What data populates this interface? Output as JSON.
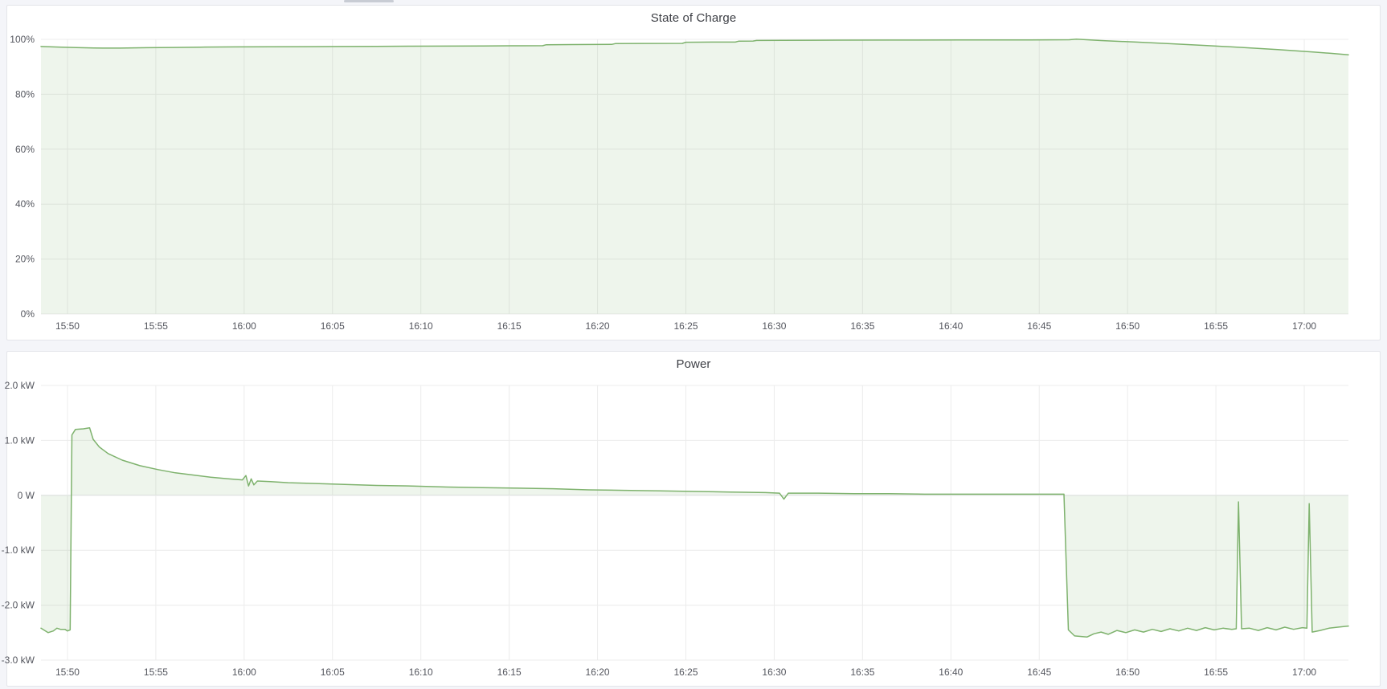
{
  "theme": {
    "page_bg": "#f4f5f9",
    "panel_bg": "#ffffff",
    "panel_border": "#e4e5ea",
    "grid_color": "#ececec",
    "zero_line_color": "#e0e0e3",
    "tick_text_color": "#54565e",
    "title_text_color": "#3d3f45",
    "series_green": "#7eb26d"
  },
  "chart_data": [
    {
      "type": "area",
      "title": "State of Charge",
      "xlabel": "",
      "ylabel": "",
      "grid": true,
      "legend": "none",
      "x_range_minutes": [
        0,
        74
      ],
      "x_ticks": {
        "times": [
          1.5,
          6.5,
          11.5,
          16.5,
          21.5,
          26.5,
          31.5,
          36.5,
          41.5,
          46.5,
          51.5,
          56.5,
          61.5,
          66.5,
          71.5
        ],
        "labels": [
          "15:50",
          "15:55",
          "16:00",
          "16:05",
          "16:10",
          "16:15",
          "16:20",
          "16:25",
          "16:30",
          "16:35",
          "16:40",
          "16:45",
          "16:50",
          "16:55",
          "17:00"
        ]
      },
      "ylim": [
        0,
        100
      ],
      "y_ticks": {
        "values": [
          100,
          80,
          60,
          40,
          20,
          0
        ],
        "labels": [
          "100%",
          "80%",
          "60%",
          "40%",
          "20%",
          "0%"
        ]
      },
      "fill_baseline": 0,
      "series": [
        {
          "name": "State of Charge",
          "unit": "%",
          "color": "#7eb26d",
          "fill_opacity": 0.13,
          "points": [
            [
              0,
              97.4
            ],
            [
              1,
              97.2
            ],
            [
              2,
              97.0
            ],
            [
              3,
              96.85
            ],
            [
              4.5,
              96.8
            ],
            [
              6,
              96.95
            ],
            [
              7.5,
              97.05
            ],
            [
              9,
              97.15
            ],
            [
              11,
              97.25
            ],
            [
              13,
              97.3
            ],
            [
              15,
              97.35
            ],
            [
              17,
              97.4
            ],
            [
              19,
              97.45
            ],
            [
              21,
              97.5
            ],
            [
              23,
              97.55
            ],
            [
              25,
              97.6
            ],
            [
              27,
              97.65
            ],
            [
              28.4,
              97.7
            ],
            [
              28.6,
              98.05
            ],
            [
              30,
              98.1
            ],
            [
              32.3,
              98.15
            ],
            [
              32.5,
              98.45
            ],
            [
              34,
              98.5
            ],
            [
              36.3,
              98.55
            ],
            [
              36.5,
              98.95
            ],
            [
              38,
              99.0
            ],
            [
              39.3,
              99.0
            ],
            [
              39.5,
              99.35
            ],
            [
              40.3,
              99.4
            ],
            [
              40.5,
              99.6
            ],
            [
              42,
              99.65
            ],
            [
              45,
              99.7
            ],
            [
              48,
              99.75
            ],
            [
              52,
              99.8
            ],
            [
              56,
              99.8
            ],
            [
              58.2,
              99.85
            ],
            [
              58.6,
              100.1
            ],
            [
              60,
              99.55
            ],
            [
              62,
              99.0
            ],
            [
              64,
              98.4
            ],
            [
              66,
              97.75
            ],
            [
              68,
              97.05
            ],
            [
              70,
              96.3
            ],
            [
              72,
              95.4
            ],
            [
              73,
              94.9
            ],
            [
              74,
              94.35
            ]
          ]
        }
      ]
    },
    {
      "type": "area",
      "title": "Power",
      "xlabel": "",
      "ylabel": "",
      "grid": true,
      "legend": "none",
      "x_range_minutes": [
        0,
        74
      ],
      "x_ticks": {
        "times": [
          1.5,
          6.5,
          11.5,
          16.5,
          21.5,
          26.5,
          31.5,
          36.5,
          41.5,
          46.5,
          51.5,
          56.5,
          61.5,
          66.5,
          71.5
        ],
        "labels": [
          "15:50",
          "15:55",
          "16:00",
          "16:05",
          "16:10",
          "16:15",
          "16:20",
          "16:25",
          "16:30",
          "16:35",
          "16:40",
          "16:45",
          "16:50",
          "16:55",
          "17:00"
        ]
      },
      "ylim": [
        -3,
        2
      ],
      "y_ticks": {
        "values": [
          2,
          1,
          0,
          -1,
          -2,
          -3
        ],
        "labels": [
          "2.0 kW",
          "1.0 kW",
          "0 W",
          "-1.0 kW",
          "-2.0 kW",
          "-3.0 kW"
        ]
      },
      "fill_baseline": 0,
      "series": [
        {
          "name": "Power",
          "unit": "kW",
          "color": "#7eb26d",
          "fill_opacity": 0.13,
          "points": [
            [
              0,
              -2.42
            ],
            [
              0.4,
              -2.5
            ],
            [
              0.7,
              -2.47
            ],
            [
              0.9,
              -2.42
            ],
            [
              1.1,
              -2.44
            ],
            [
              1.35,
              -2.44
            ],
            [
              1.5,
              -2.47
            ],
            [
              1.65,
              -2.45
            ],
            [
              1.75,
              1.1
            ],
            [
              1.95,
              1.2
            ],
            [
              2.4,
              1.21
            ],
            [
              2.75,
              1.23
            ],
            [
              2.95,
              1.02
            ],
            [
              3.3,
              0.88
            ],
            [
              3.8,
              0.76
            ],
            [
              4.6,
              0.64
            ],
            [
              5.6,
              0.54
            ],
            [
              6.6,
              0.47
            ],
            [
              7.6,
              0.41
            ],
            [
              8.6,
              0.37
            ],
            [
              9.6,
              0.33
            ],
            [
              10.6,
              0.3
            ],
            [
              11.4,
              0.28
            ],
            [
              11.6,
              0.36
            ],
            [
              11.75,
              0.17
            ],
            [
              11.9,
              0.3
            ],
            [
              12.05,
              0.19
            ],
            [
              12.25,
              0.26
            ],
            [
              13,
              0.25
            ],
            [
              14,
              0.23
            ],
            [
              15,
              0.22
            ],
            [
              17,
              0.2
            ],
            [
              19,
              0.18
            ],
            [
              21,
              0.17
            ],
            [
              23,
              0.15
            ],
            [
              25,
              0.14
            ],
            [
              27,
              0.13
            ],
            [
              29,
              0.12
            ],
            [
              31,
              0.1
            ],
            [
              33,
              0.09
            ],
            [
              35,
              0.08
            ],
            [
              37,
              0.07
            ],
            [
              39,
              0.06
            ],
            [
              41,
              0.05
            ],
            [
              41.8,
              0.04
            ],
            [
              42.05,
              -0.07
            ],
            [
              42.3,
              0.04
            ],
            [
              44,
              0.04
            ],
            [
              46,
              0.03
            ],
            [
              48,
              0.03
            ],
            [
              50,
              0.02
            ],
            [
              52,
              0.02
            ],
            [
              54,
              0.02
            ],
            [
              56,
              0.02
            ],
            [
              57.9,
              0.02
            ],
            [
              58.15,
              -2.45
            ],
            [
              58.5,
              -2.56
            ],
            [
              59.2,
              -2.58
            ],
            [
              59.6,
              -2.52
            ],
            [
              60,
              -2.49
            ],
            [
              60.4,
              -2.53
            ],
            [
              60.9,
              -2.46
            ],
            [
              61.4,
              -2.5
            ],
            [
              61.9,
              -2.45
            ],
            [
              62.4,
              -2.49
            ],
            [
              62.9,
              -2.44
            ],
            [
              63.4,
              -2.48
            ],
            [
              63.9,
              -2.43
            ],
            [
              64.4,
              -2.47
            ],
            [
              64.9,
              -2.42
            ],
            [
              65.4,
              -2.46
            ],
            [
              65.9,
              -2.41
            ],
            [
              66.4,
              -2.45
            ],
            [
              66.9,
              -2.42
            ],
            [
              67.4,
              -2.44
            ],
            [
              67.65,
              -2.43
            ],
            [
              67.78,
              -0.12
            ],
            [
              67.95,
              -2.43
            ],
            [
              68.4,
              -2.42
            ],
            [
              68.9,
              -2.46
            ],
            [
              69.4,
              -2.41
            ],
            [
              69.9,
              -2.45
            ],
            [
              70.4,
              -2.4
            ],
            [
              70.9,
              -2.44
            ],
            [
              71.4,
              -2.41
            ],
            [
              71.65,
              -2.42
            ],
            [
              71.78,
              -0.15
            ],
            [
              71.95,
              -2.49
            ],
            [
              72.4,
              -2.46
            ],
            [
              72.9,
              -2.42
            ],
            [
              73.4,
              -2.4
            ],
            [
              74,
              -2.38
            ]
          ]
        }
      ]
    }
  ]
}
